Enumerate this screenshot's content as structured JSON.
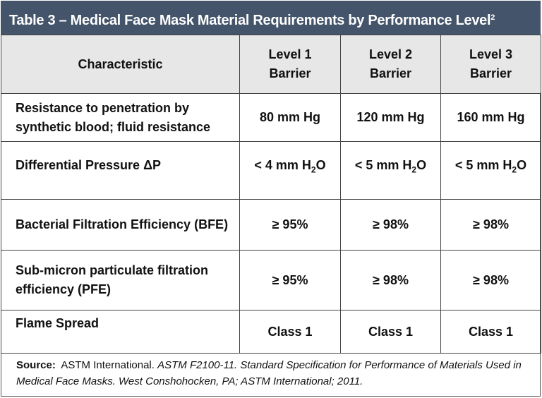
{
  "title": {
    "text": "Table 3 –  Medical Face Mask Material Requirements by Performance Level",
    "sup": "2"
  },
  "colors": {
    "title_bg": "#44546a",
    "header_bg": "#e7e7e7"
  },
  "header": {
    "characteristic": "Characteristic",
    "levels": [
      {
        "line1": "Level 1",
        "line2": "Barrier"
      },
      {
        "line1": "Level 2",
        "line2": "Barrier"
      },
      {
        "line1": "Level 3",
        "line2": "Barrier"
      }
    ]
  },
  "rows": [
    {
      "label": "Resistance to penetration by synthetic blood; fluid resistance",
      "values": [
        "80 mm  Hg",
        "120 mm Hg",
        "160 mm Hg"
      ]
    },
    {
      "label": "Differential Pressure ΔP",
      "values": [
        {
          "pre": "< 4 mm H",
          "sub": "2",
          "post": "O"
        },
        {
          "pre": "< 5 mm H",
          "sub": "2",
          "post": "O"
        },
        {
          "pre": "< 5 mm H",
          "sub": "2",
          "post": "O"
        }
      ]
    },
    {
      "label": "Bacterial Filtration Efficiency (BFE)",
      "values": [
        "≥ 95%",
        "≥ 98%",
        "≥ 98%"
      ]
    },
    {
      "label": "Sub-micron particulate filtration efficiency (PFE)",
      "values": [
        "≥ 95%",
        "≥ 98%",
        "≥ 98%"
      ]
    },
    {
      "label": "Flame Spread",
      "values": [
        "Class 1",
        "Class 1",
        "Class 1"
      ]
    }
  ],
  "source": {
    "label": "Source:",
    "plain": "ASTM International.",
    "italic": "ASTM F2100-11.  Standard Specification for Performance of Materials Used in Medical Face Masks. West Conshohocken, PA; ASTM International; 2011."
  }
}
